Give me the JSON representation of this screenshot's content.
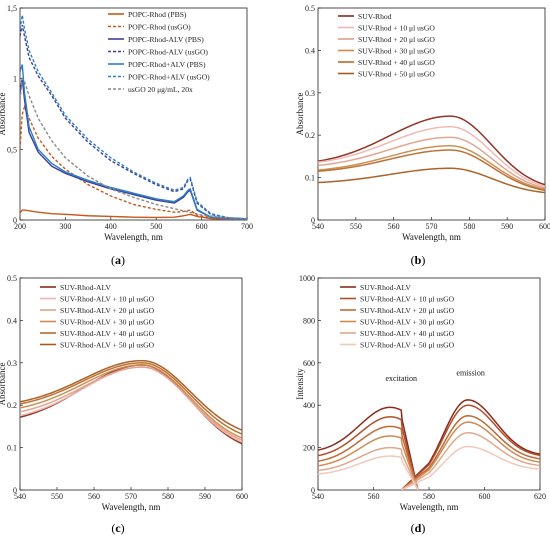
{
  "chart_data": [
    {
      "panel_label": "(a)",
      "type": "line",
      "xlabel": "Wavelength, nm",
      "ylabel": "Absorbance",
      "xlim": [
        200,
        700
      ],
      "ylim": [
        0,
        1.5
      ],
      "xticks": [
        200,
        300,
        400,
        500,
        600,
        700
      ],
      "yticks": [
        0,
        0.5,
        1,
        1.5
      ],
      "ytick_labels": [
        "0",
        "0,5",
        "1",
        "1,5"
      ],
      "legend_position": "top-right",
      "series": [
        {
          "name": "POPC-Rhod (PBS)",
          "color": "#c8581a",
          "dash": "solid",
          "x": [
            200,
            205,
            210,
            220,
            240,
            270,
            300,
            350,
            400,
            450,
            500,
            540,
            560,
            575,
            590,
            620,
            660,
            700
          ],
          "y": [
            0.05,
            0.07,
            0.07,
            0.065,
            0.055,
            0.045,
            0.04,
            0.03,
            0.025,
            0.02,
            0.018,
            0.02,
            0.03,
            0.04,
            0.025,
            0.01,
            0.005,
            0.003
          ]
        },
        {
          "name": "POPC-Rhod (usGO)",
          "color": "#c8581a",
          "dash": "dashed",
          "x": [
            200,
            205,
            210,
            220,
            240,
            270,
            300,
            350,
            400,
            450,
            500,
            540,
            560,
            575,
            590,
            620,
            660,
            700
          ],
          "y": [
            0.5,
            0.75,
            0.8,
            0.72,
            0.58,
            0.45,
            0.36,
            0.25,
            0.17,
            0.11,
            0.075,
            0.055,
            0.06,
            0.07,
            0.035,
            0.015,
            0.008,
            0.005
          ]
        },
        {
          "name": "POPC-Rhod-ALV (PBS)",
          "color": "#3a3f9a",
          "dash": "solid",
          "x": [
            200,
            205,
            210,
            220,
            240,
            270,
            300,
            350,
            400,
            450,
            500,
            540,
            560,
            570,
            575,
            590,
            620,
            660,
            700
          ],
          "y": [
            0.9,
            1.0,
            0.85,
            0.62,
            0.48,
            0.38,
            0.33,
            0.27,
            0.22,
            0.18,
            0.14,
            0.12,
            0.16,
            0.2,
            0.21,
            0.07,
            0.02,
            0.01,
            0.005
          ]
        },
        {
          "name": "POPC-Rhod-ALV (usGO)",
          "color": "#3a3f9a",
          "dash": "dashed",
          "x": [
            200,
            205,
            210,
            220,
            240,
            270,
            300,
            350,
            400,
            450,
            500,
            540,
            560,
            570,
            575,
            590,
            620,
            660,
            700
          ],
          "y": [
            1.3,
            1.38,
            1.3,
            1.15,
            1.02,
            0.88,
            0.72,
            0.55,
            0.42,
            0.33,
            0.25,
            0.2,
            0.22,
            0.28,
            0.29,
            0.12,
            0.04,
            0.015,
            0.008
          ]
        },
        {
          "name": "POPC-Rhod+ALV (PBS)",
          "color": "#2c7fc4",
          "dash": "solid",
          "x": [
            200,
            205,
            210,
            220,
            240,
            270,
            300,
            350,
            400,
            450,
            500,
            540,
            560,
            570,
            575,
            590,
            620,
            660,
            700
          ],
          "y": [
            1.05,
            1.1,
            0.9,
            0.66,
            0.5,
            0.4,
            0.34,
            0.28,
            0.23,
            0.19,
            0.15,
            0.13,
            0.17,
            0.21,
            0.22,
            0.075,
            0.02,
            0.01,
            0.005
          ]
        },
        {
          "name": "POPC-Rhod+ALV (usGO)",
          "color": "#2c7fc4",
          "dash": "dashed",
          "x": [
            200,
            205,
            210,
            220,
            240,
            270,
            300,
            350,
            400,
            450,
            500,
            540,
            560,
            570,
            575,
            590,
            620,
            660,
            700
          ],
          "y": [
            1.35,
            1.45,
            1.35,
            1.2,
            1.05,
            0.9,
            0.74,
            0.57,
            0.44,
            0.34,
            0.26,
            0.21,
            0.23,
            0.29,
            0.3,
            0.13,
            0.045,
            0.015,
            0.008
          ]
        },
        {
          "name": "usGO 20 μg/mL, 20x",
          "color": "#8a8a8a",
          "dash": "dashed",
          "x": [
            200,
            205,
            210,
            220,
            240,
            270,
            300,
            350,
            400,
            450,
            500,
            540,
            560,
            580,
            600,
            640,
            700
          ],
          "y": [
            0.85,
            1.0,
            0.98,
            0.88,
            0.72,
            0.56,
            0.44,
            0.31,
            0.22,
            0.16,
            0.11,
            0.08,
            0.065,
            0.05,
            0.035,
            0.02,
            0.01
          ]
        }
      ]
    },
    {
      "panel_label": "(b)",
      "type": "line",
      "xlabel": "Wavelength, nm",
      "ylabel": "Absorbance",
      "xlim": [
        540,
        600
      ],
      "ylim": [
        0,
        0.5
      ],
      "xticks": [
        540,
        550,
        560,
        570,
        580,
        590,
        600
      ],
      "yticks": [
        0,
        0.1,
        0.2,
        0.3,
        0.4,
        0.5
      ],
      "ytick_labels": [
        "0",
        "0.1",
        "0.2",
        "0.3",
        "0.4",
        "0.5"
      ],
      "legend_position": "top-left",
      "curve_shape": "gaussian_peak",
      "peak_x": 575,
      "sigma_left": 16,
      "sigma_right": 11,
      "series": [
        {
          "name": "SUV-Rhod",
          "color": "#8b2a1c",
          "peak": 0.245,
          "baseline_left": 0.128,
          "baseline_right": 0.07
        },
        {
          "name": "SUV-Rhod + 10 μl usGO",
          "color": "#f0b5b0",
          "peak": 0.22,
          "baseline_left": 0.128,
          "baseline_right": 0.068
        },
        {
          "name": "SUV-Rhod + 20 μl usGO",
          "color": "#e0a08a",
          "peak": 0.195,
          "baseline_left": 0.122,
          "baseline_right": 0.066
        },
        {
          "name": "SUV-Rhod + 30 μl usGO",
          "color": "#cf8a4a",
          "peak": 0.175,
          "baseline_left": 0.112,
          "baseline_right": 0.064
        },
        {
          "name": "SUV-Rhod + 40 μl usGO",
          "color": "#b86a2a",
          "peak": 0.165,
          "baseline_left": 0.11,
          "baseline_right": 0.062
        },
        {
          "name": "SUV-Rhod + 50 μl usGO",
          "color": "#a85a1c",
          "peak": 0.122,
          "baseline_left": 0.085,
          "baseline_right": 0.06
        }
      ]
    },
    {
      "panel_label": "(c)",
      "type": "line",
      "xlabel": "Wavelength, nm",
      "ylabel": "Absorbance",
      "xlim": [
        540,
        600
      ],
      "ylim": [
        0,
        0.5
      ],
      "xticks": [
        540,
        550,
        560,
        570,
        580,
        590,
        600
      ],
      "yticks": [
        0,
        0.1,
        0.2,
        0.3,
        0.4,
        0.5
      ],
      "ytick_labels": [
        "0",
        "0.1",
        "0.2",
        "0.3",
        "0.4",
        "0.5"
      ],
      "legend_position": "top-left",
      "curve_shape": "gaussian_peak",
      "peak_x": 573,
      "sigma_left": 16,
      "sigma_right": 13,
      "series": [
        {
          "name": "SUV-Rhod-ALV",
          "color": "#8b2a1c",
          "peak": 0.295,
          "baseline_left": 0.155,
          "baseline_right": 0.085
        },
        {
          "name": "SUV-Rhod-ALV + 10 μl usGO",
          "color": "#f0b5b0",
          "peak": 0.29,
          "baseline_left": 0.16,
          "baseline_right": 0.09
        },
        {
          "name": "SUV-Rhod-ALV + 20 μl usGO",
          "color": "#e0a08a",
          "peak": 0.29,
          "baseline_left": 0.17,
          "baseline_right": 0.095
        },
        {
          "name": "SUV-Rhod-ALV + 30 μl usGO",
          "color": "#cf8a4a",
          "peak": 0.295,
          "baseline_left": 0.18,
          "baseline_right": 0.1
        },
        {
          "name": "SUV-Rhod-ALV + 40 μl usGO",
          "color": "#b86a2a",
          "peak": 0.3,
          "baseline_left": 0.19,
          "baseline_right": 0.11
        },
        {
          "name": "SUV-Rhod-ALV + 50 μl usGO",
          "color": "#a85a1c",
          "peak": 0.305,
          "baseline_left": 0.195,
          "baseline_right": 0.12
        }
      ]
    },
    {
      "panel_label": "(d)",
      "type": "line",
      "xlabel": "Wavelength, nm",
      "ylabel": "Intensity",
      "xlim": [
        540,
        620
      ],
      "ylim": [
        0,
        1000
      ],
      "xticks": [
        540,
        560,
        580,
        600,
        620
      ],
      "yticks": [
        0,
        200,
        400,
        600,
        800,
        1000
      ],
      "ytick_labels": [
        "0",
        "200",
        "400",
        "600",
        "800",
        "1000"
      ],
      "legend_position": "top-left",
      "annotations": [
        "excitation",
        "emission"
      ],
      "excitation": {
        "x_start": 540,
        "x_end": 570,
        "peak_x": 570
      },
      "emission": {
        "x_start": 580,
        "x_end": 620,
        "peak_x": 594
      },
      "series": [
        {
          "name": "SUV-Rhod-ALV",
          "color": "#8b2a1c",
          "exc_peak": 390,
          "exc_start": 175,
          "em_peak": 425,
          "em_end": 160
        },
        {
          "name": "SUV-Rhod-ALV + 10 μl usGO",
          "color": "#b0502a",
          "exc_peak": 345,
          "exc_start": 150,
          "em_peak": 400,
          "em_end": 155
        },
        {
          "name": "SUV-Rhod-ALV + 20 μl usGO",
          "color": "#c06a35",
          "exc_peak": 300,
          "exc_start": 125,
          "em_peak": 350,
          "em_end": 140
        },
        {
          "name": "SUV-Rhod-ALV + 30 μl usGO",
          "color": "#d08a55",
          "exc_peak": 255,
          "exc_start": 105,
          "em_peak": 320,
          "em_end": 125
        },
        {
          "name": "SUV-Rhod-ALV + 40 μl usGO",
          "color": "#e0a88a",
          "exc_peak": 200,
          "exc_start": 85,
          "em_peak": 270,
          "em_end": 110
        },
        {
          "name": "SUV-Rhod-ALV + 50 μl usGO",
          "color": "#f0c8bc",
          "exc_peak": 160,
          "exc_start": 70,
          "em_peak": 205,
          "em_end": 95
        }
      ]
    }
  ]
}
